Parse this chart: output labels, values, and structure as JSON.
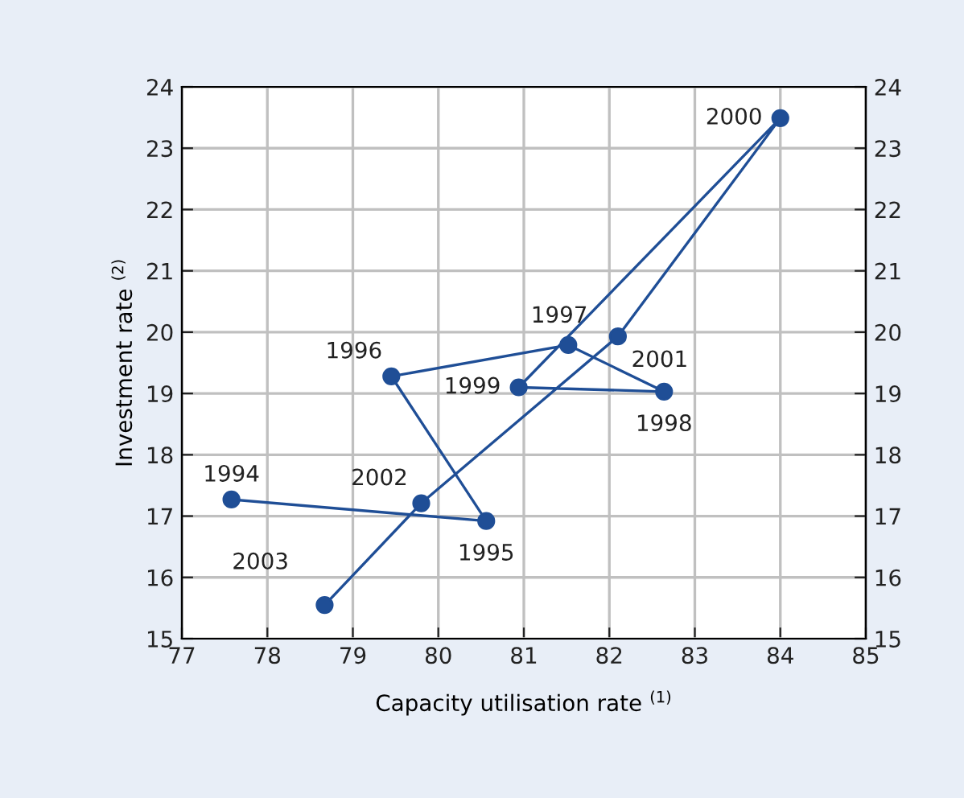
{
  "chart_data": {
    "type": "line",
    "xlabel": "Capacity utilisation rate $^{(1)}$",
    "ylabel": "Investment rate $^{(2)}$",
    "x": [
      77.58,
      80.56,
      79.45,
      81.52,
      82.64,
      80.94,
      84.0,
      82.1,
      79.8,
      78.67
    ],
    "series": [
      {
        "color": "#1f4e96",
        "values": [
          17.27,
          16.92,
          19.28,
          19.79,
          19.03,
          19.1,
          23.49,
          19.93,
          17.21,
          15.55
        ]
      }
    ],
    "annotations": [
      {
        "text": "1994",
        "x": 77.58,
        "y": 17.27
      },
      {
        "text": "1995",
        "x": 80.56,
        "y": 16.92
      },
      {
        "text": "1996",
        "x": 79.45,
        "y": 19.28
      },
      {
        "text": "1997",
        "x": 81.52,
        "y": 19.79
      },
      {
        "text": "1998",
        "x": 82.64,
        "y": 19.03
      },
      {
        "text": "1999",
        "x": 80.94,
        "y": 19.1
      },
      {
        "text": "2000",
        "x": 84.0,
        "y": 23.49
      },
      {
        "text": "2001",
        "x": 82.1,
        "y": 19.93
      },
      {
        "text": "2002",
        "x": 79.8,
        "y": 17.21
      },
      {
        "text": "2003",
        "x": 78.67,
        "y": 15.55
      }
    ],
    "xlim": [
      77,
      85
    ],
    "xticks": [
      77,
      78,
      79,
      80,
      81,
      82,
      83,
      84,
      85
    ],
    "ylim": [
      15,
      24
    ],
    "yticks": [
      15,
      16,
      17,
      18,
      19,
      20,
      21,
      22,
      23,
      24
    ],
    "y2lim": [
      15,
      24
    ],
    "y2ticks": [
      15,
      16,
      17,
      18,
      19,
      20,
      21,
      22,
      23,
      24
    ],
    "grid": true,
    "marker": "circle",
    "line_style": "solid"
  }
}
